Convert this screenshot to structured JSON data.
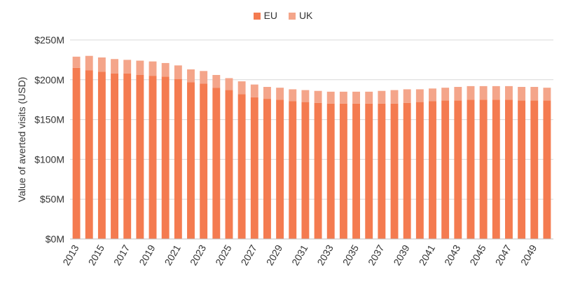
{
  "chart_data": {
    "type": "bar",
    "stacked": true,
    "ylabel": "Value of averted visits (USD)",
    "ylim": [
      0,
      250
    ],
    "yticks": [
      0,
      50,
      100,
      150,
      200,
      250
    ],
    "ytick_labels": [
      "$0M",
      "$50M",
      "$100M",
      "$150M",
      "$200M",
      "$250M"
    ],
    "grid": true,
    "legend": "top-center",
    "categories": [
      "2013",
      "2014",
      "2015",
      "2016",
      "2017",
      "2018",
      "2019",
      "2020",
      "2021",
      "2022",
      "2023",
      "2024",
      "2025",
      "2026",
      "2027",
      "2028",
      "2029",
      "2030",
      "2031",
      "2032",
      "2033",
      "2034",
      "2035",
      "2036",
      "2037",
      "2038",
      "2039",
      "2040",
      "2041",
      "2042",
      "2043",
      "2044",
      "2045",
      "2046",
      "2047",
      "2048",
      "2049",
      "2050"
    ],
    "xtick_labels": [
      "2013",
      "",
      "2015",
      "",
      "2017",
      "",
      "2019",
      "",
      "2021",
      "",
      "2023",
      "",
      "2025",
      "",
      "2027",
      "",
      "2029",
      "",
      "2031",
      "",
      "2033",
      "",
      "2035",
      "",
      "2037",
      "",
      "2039",
      "",
      "2041",
      "",
      "2043",
      "",
      "2045",
      "",
      "2047",
      "",
      "2049",
      ""
    ],
    "series": [
      {
        "name": "EU",
        "color": "#F47B50",
        "values": [
          215,
          212,
          210,
          208,
          208,
          206,
          205,
          204,
          201,
          197,
          195,
          190,
          187,
          182,
          178,
          176,
          175,
          173,
          172,
          171,
          170,
          170,
          170,
          170,
          170,
          170,
          171,
          172,
          173,
          174,
          174,
          175,
          175,
          175,
          175,
          174,
          174,
          174
        ]
      },
      {
        "name": "UK",
        "color": "#F4A58A",
        "values": [
          14,
          18,
          18,
          18,
          17,
          18,
          18,
          17,
          17,
          16,
          16,
          16,
          15,
          16,
          16,
          15,
          15,
          15,
          15,
          15,
          15,
          15,
          15,
          15,
          16,
          17,
          17,
          16,
          16,
          16,
          17,
          17,
          17,
          17,
          17,
          17,
          17,
          16
        ]
      }
    ]
  }
}
